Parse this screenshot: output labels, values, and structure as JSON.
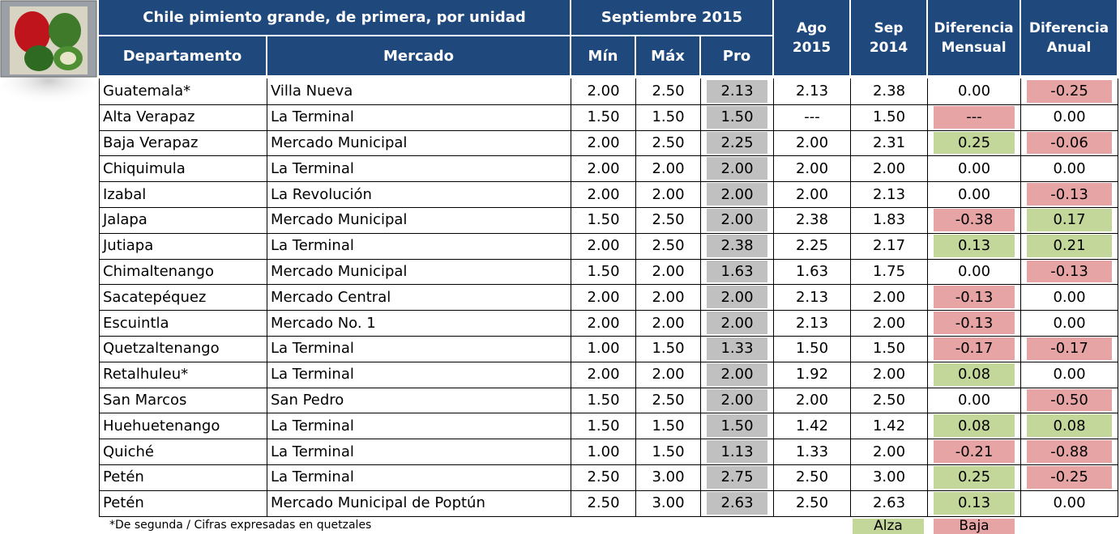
{
  "header": {
    "title": "Chile pimiento grande, de primera, por unidad",
    "period": "Septiembre 2015",
    "columns": [
      "Departamento",
      "Mercado",
      "Mín",
      "Máx",
      "Pro"
    ],
    "stacked": [
      [
        "Ago",
        "2015"
      ],
      [
        "Sep",
        "2014"
      ],
      [
        "Diferencia",
        "Mensual"
      ],
      [
        "Diferencia",
        "Anual"
      ]
    ]
  },
  "rows": [
    [
      "Guatemala*",
      "Villa Nueva",
      "2.00",
      "2.50",
      "2.13",
      "2.13",
      "2.38",
      "0.00",
      "-0.25"
    ],
    [
      "Alta Verapaz",
      "La Terminal",
      "1.50",
      "1.50",
      "1.50",
      "---",
      "1.50",
      "---",
      "0.00"
    ],
    [
      "Baja Verapaz",
      "Mercado Municipal",
      "2.00",
      "2.50",
      "2.25",
      "2.00",
      "2.31",
      "0.25",
      "-0.06"
    ],
    [
      "Chiquimula",
      "La Terminal",
      "2.00",
      "2.00",
      "2.00",
      "2.00",
      "2.00",
      "0.00",
      "0.00"
    ],
    [
      "Izabal",
      "La Revolución",
      "2.00",
      "2.00",
      "2.00",
      "2.00",
      "2.13",
      "0.00",
      "-0.13"
    ],
    [
      "Jalapa",
      "Mercado Municipal",
      "1.50",
      "2.50",
      "2.00",
      "2.38",
      "1.83",
      "-0.38",
      "0.17"
    ],
    [
      "Jutiapa",
      "La Terminal",
      "2.00",
      "2.50",
      "2.38",
      "2.25",
      "2.17",
      "0.13",
      "0.21"
    ],
    [
      "Chimaltenango",
      "Mercado Municipal",
      "1.50",
      "2.00",
      "1.63",
      "1.63",
      "1.75",
      "0.00",
      "-0.13"
    ],
    [
      "Sacatepéquez",
      "Mercado Central",
      "2.00",
      "2.00",
      "2.00",
      "2.13",
      "2.00",
      "-0.13",
      "0.00"
    ],
    [
      "Escuintla",
      "Mercado No. 1",
      "2.00",
      "2.00",
      "2.00",
      "2.13",
      "2.00",
      "-0.13",
      "0.00"
    ],
    [
      "Quetzaltenango",
      "La Terminal",
      "1.00",
      "1.50",
      "1.33",
      "1.50",
      "1.50",
      "-0.17",
      "-0.17"
    ],
    [
      "Retalhuleu*",
      "La Terminal",
      "2.00",
      "2.00",
      "2.00",
      "1.92",
      "2.00",
      "0.08",
      "0.00"
    ],
    [
      "San Marcos",
      "San Pedro",
      "1.50",
      "2.50",
      "2.00",
      "2.00",
      "2.50",
      "0.00",
      "-0.50"
    ],
    [
      "Huehuetenango",
      "La Terminal",
      "1.50",
      "1.50",
      "1.50",
      "1.42",
      "1.42",
      "0.08",
      "0.08"
    ],
    [
      "Quiché",
      "La Terminal",
      "1.00",
      "1.50",
      "1.13",
      "1.33",
      "2.00",
      "-0.21",
      "-0.88"
    ],
    [
      "Petén",
      "La Terminal",
      "2.50",
      "3.00",
      "2.75",
      "2.50",
      "3.00",
      "0.25",
      "-0.25"
    ],
    [
      "Petén",
      "Mercado Municipal de Poptún",
      "2.50",
      "3.00",
      "2.63",
      "2.50",
      "2.63",
      "0.13",
      "0.00"
    ]
  ],
  "footer": {
    "note": "*De segunda / Cifras expresadas en quetzales",
    "legend": [
      "Alza",
      "Baja"
    ]
  }
}
